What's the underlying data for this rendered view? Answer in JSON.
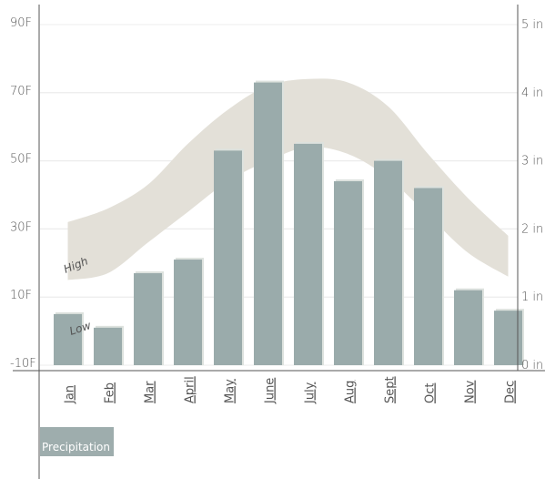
{
  "chart_data": {
    "type": "bar",
    "categories": [
      "Jan",
      "Feb",
      "Mar",
      "April",
      "May",
      "June",
      "July",
      "Aug",
      "Sept",
      "Oct",
      "Nov",
      "Dec"
    ],
    "series": [
      {
        "name": "Precipitation",
        "unit": "in",
        "axis": "right",
        "values": [
          0.75,
          0.55,
          1.35,
          1.55,
          3.15,
          4.15,
          3.25,
          2.7,
          3.0,
          2.6,
          1.1,
          0.8
        ]
      }
    ],
    "temperature_band": {
      "axis": "left",
      "high": [
        32,
        36,
        43,
        55,
        65,
        72,
        74,
        73,
        66,
        52,
        39,
        28
      ],
      "low": [
        15,
        17,
        26,
        35,
        44,
        50,
        54,
        52,
        45,
        34,
        23,
        16
      ],
      "high_label": "High",
      "low_label": "Low"
    },
    "left_axis": {
      "ticks": [
        "90F",
        "70F",
        "50F",
        "30F",
        "10F",
        "-10F"
      ],
      "values": [
        90,
        70,
        50,
        30,
        10,
        -10
      ],
      "range": [
        -10,
        100
      ]
    },
    "right_axis": {
      "ticks": [
        "5 in",
        "4 in",
        "3 in",
        "2 in",
        "1 in",
        "0 in"
      ],
      "values": [
        5,
        4,
        3,
        2,
        1,
        0
      ],
      "range": [
        0,
        5
      ]
    },
    "legend": {
      "label": "Precipitation",
      "placement": "bottom-left"
    },
    "grid": true,
    "colors": {
      "bar": "#9aabab",
      "bar_shadow": "#dde2de",
      "band": "#e3e0d8",
      "axis": "#555555",
      "grid": "#e6e6e6"
    }
  }
}
